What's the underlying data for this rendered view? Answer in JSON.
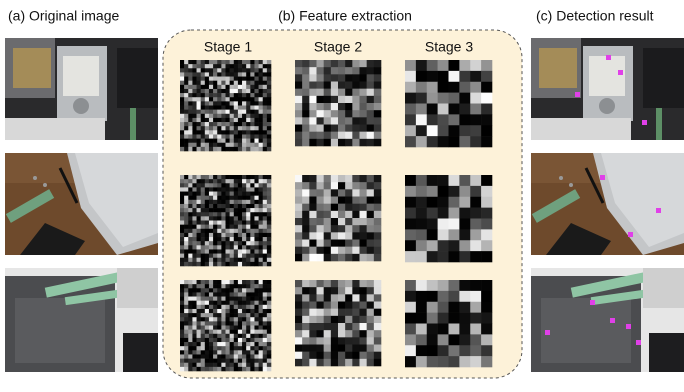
{
  "panels": [
    {
      "label": "(a) Original image"
    },
    {
      "label": "(b) Feature extraction"
    },
    {
      "label": "(c) Detection result"
    }
  ],
  "stages": [
    "Stage 1",
    "Stage 2",
    "Stage 3"
  ]
}
